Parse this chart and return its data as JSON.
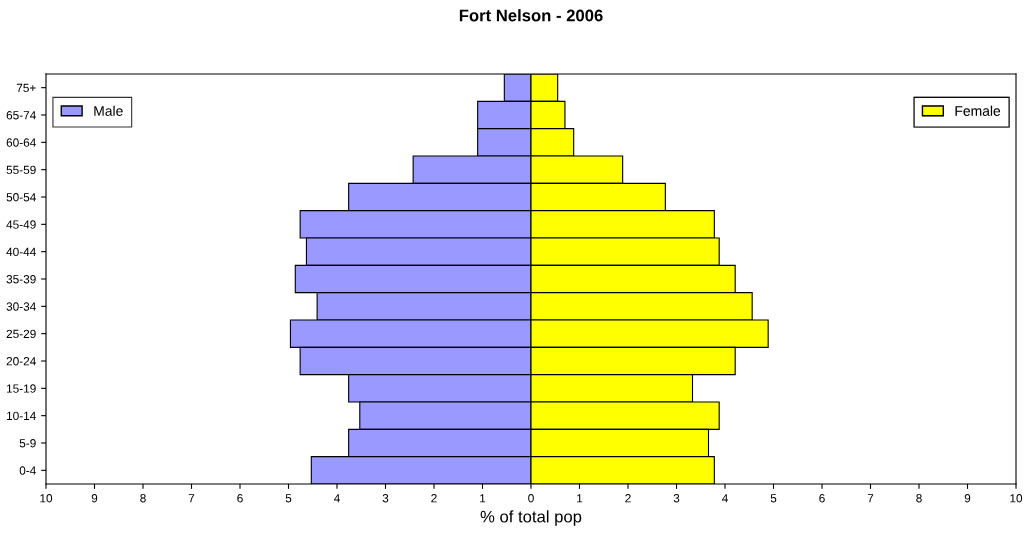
{
  "chart_data": {
    "type": "bar",
    "orientation": "horizontal",
    "stacked": true,
    "title": "Fort Nelson - 2006",
    "xlabel": "% of total pop",
    "categories": [
      "75+",
      "65-74",
      "60-64",
      "55-59",
      "50-54",
      "45-49",
      "40-44",
      "35-39",
      "30-34",
      "25-29",
      "20-24",
      "15-19",
      "10-14",
      "5-9",
      "0-4"
    ],
    "series": [
      {
        "name": "Male",
        "color": "#9999ff",
        "values": [
          -0.55,
          -1.1,
          -1.1,
          -2.43,
          -3.76,
          -4.76,
          -4.63,
          -4.86,
          -4.41,
          -4.96,
          -4.76,
          -3.76,
          -3.53,
          -3.76,
          -4.53
        ]
      },
      {
        "name": "Female",
        "color": "#ffff00",
        "values": [
          0.55,
          0.7,
          0.88,
          1.89,
          2.77,
          3.78,
          3.88,
          4.21,
          4.56,
          4.89,
          4.21,
          3.33,
          3.88,
          3.66,
          3.78
        ]
      }
    ],
    "xlim": [
      -10,
      10
    ],
    "xticks": [
      {
        "value": -10,
        "label": "10"
      },
      {
        "value": -9,
        "label": "9"
      },
      {
        "value": -8,
        "label": "8"
      },
      {
        "value": -7,
        "label": "7"
      },
      {
        "value": -6,
        "label": "6"
      },
      {
        "value": -5,
        "label": "5"
      },
      {
        "value": -4,
        "label": "4"
      },
      {
        "value": -3,
        "label": "3"
      },
      {
        "value": -2,
        "label": "2"
      },
      {
        "value": -1,
        "label": "1"
      },
      0,
      1,
      2,
      3,
      4,
      5,
      6,
      7,
      8,
      9,
      10
    ],
    "legend": "top",
    "grid": false
  }
}
